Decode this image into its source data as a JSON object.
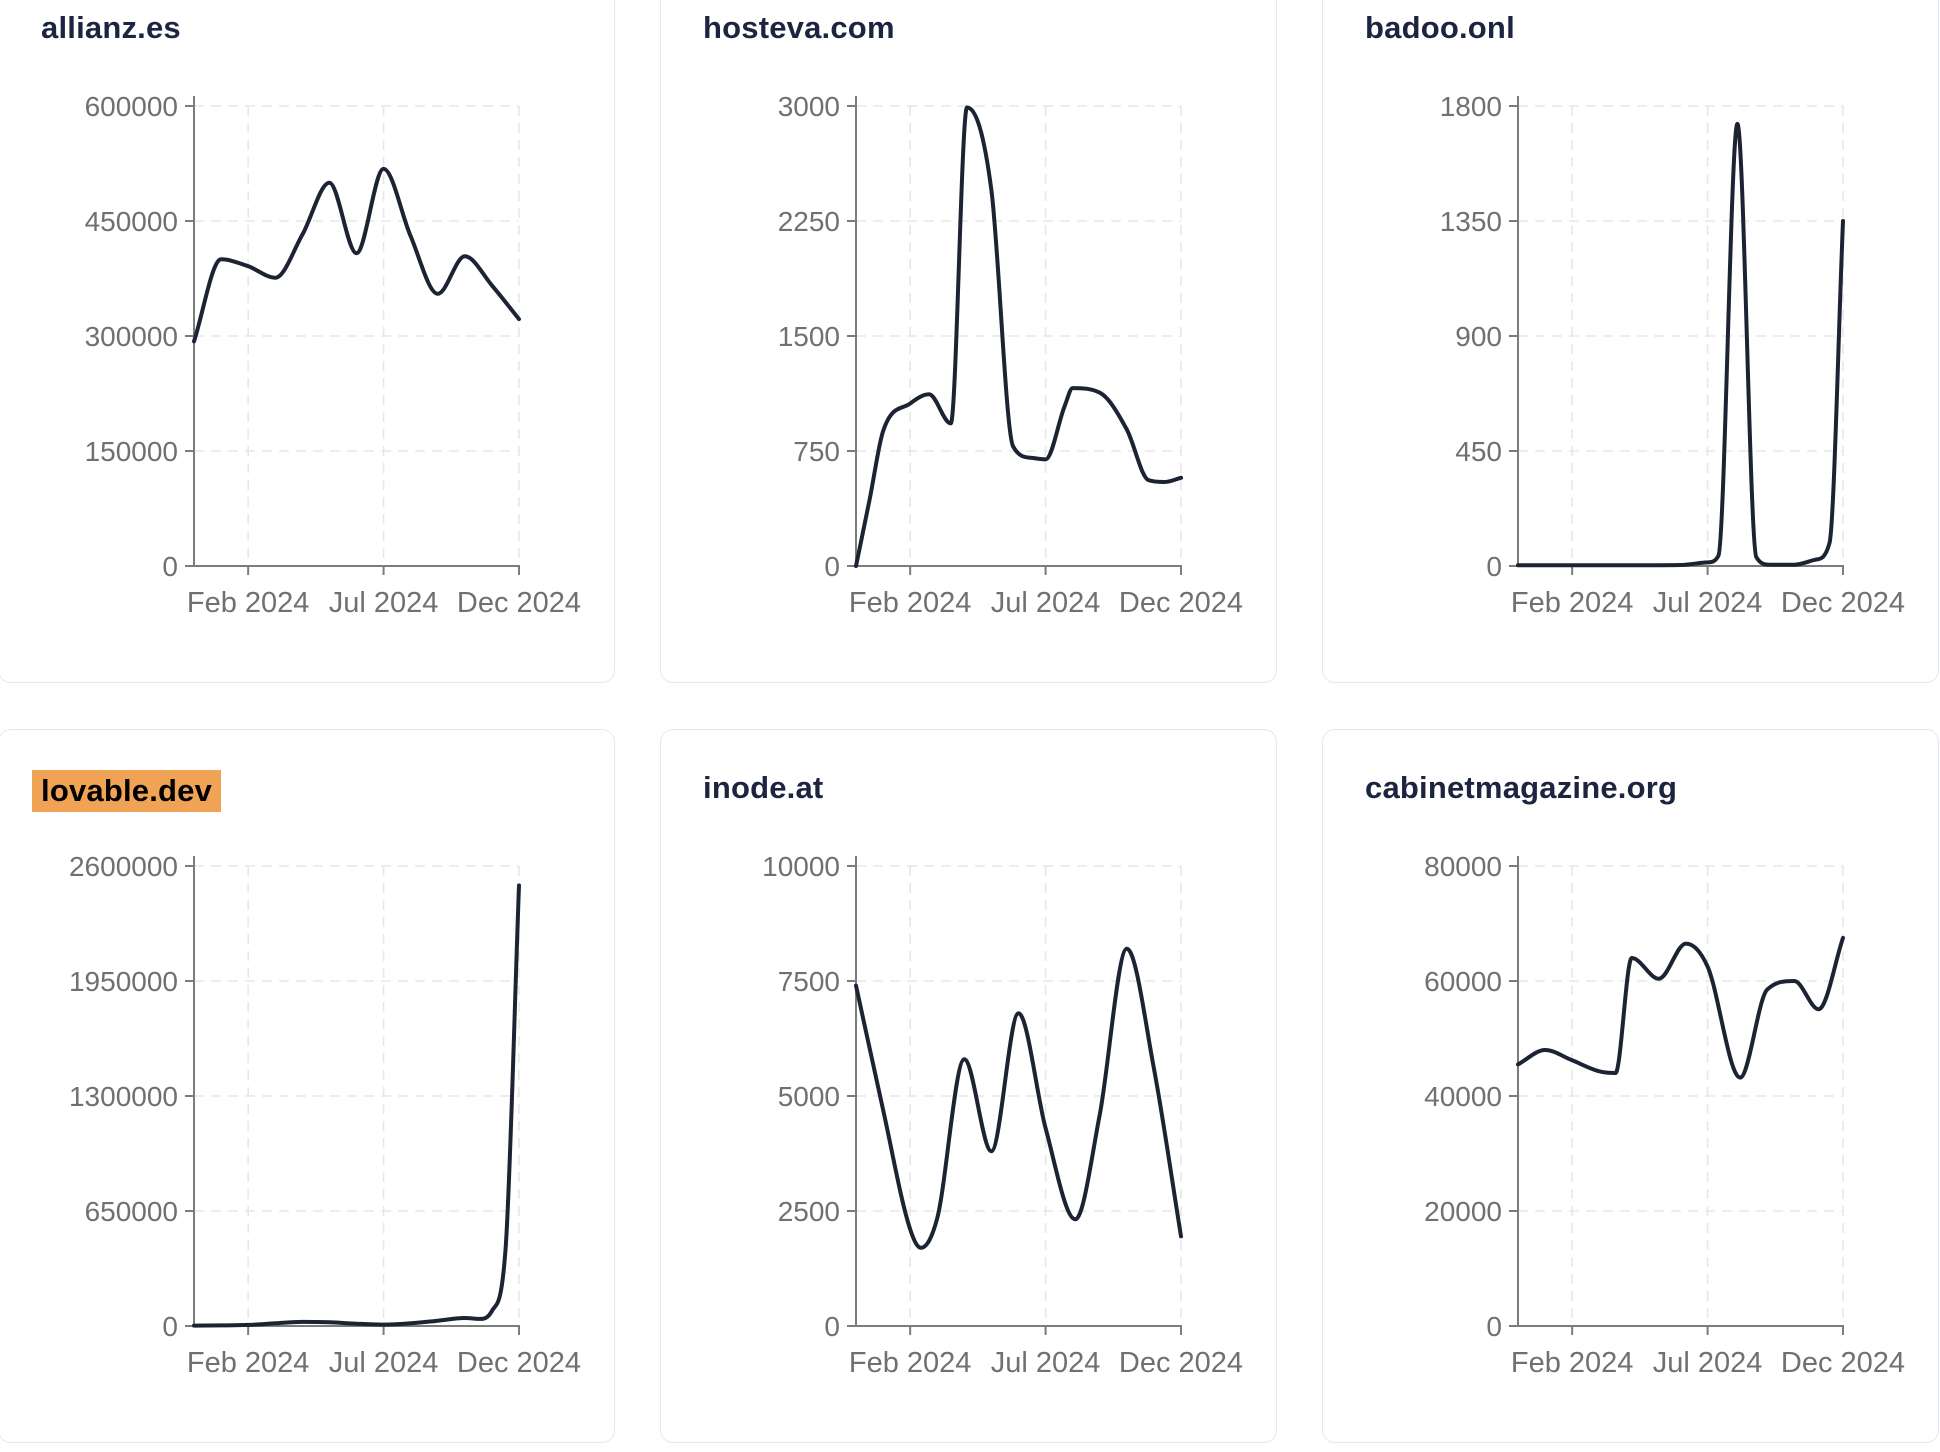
{
  "page": {
    "background": "#ffffff"
  },
  "colors": {
    "line": "#1c2333",
    "title": "#1c2540",
    "axis": "#7c7c7c",
    "tick_text": "#707070",
    "grid": "#e7e7e9",
    "card_bg": "#ffffff",
    "card_border": "#e4e8f0",
    "page_bg": "#ffffff",
    "highlight_bg": "#f0a355",
    "highlight_text": "#000000"
  },
  "chart_data": [
    {
      "type": "line",
      "title": "allianz.es",
      "highlighted": false,
      "x_start": "Dec 2023",
      "x_end": "Dec 2024",
      "x_tick_labels": [
        "Feb 2024",
        "Jul 2024",
        "Dec 2024"
      ],
      "x_tick_positions_months": [
        2,
        7,
        12
      ],
      "x_range_months": [
        0,
        12
      ],
      "ylim": [
        0,
        600000
      ],
      "y_ticks": [
        0,
        150000,
        300000,
        450000,
        600000
      ],
      "grid": "dashed",
      "legend": "none",
      "points": [
        [
          0,
          293000
        ],
        [
          1,
          400000
        ],
        [
          2,
          391000
        ],
        [
          3,
          376000
        ],
        [
          4,
          432000
        ],
        [
          5,
          500000
        ],
        [
          6,
          408000
        ],
        [
          7,
          518000
        ],
        [
          8,
          430000
        ],
        [
          9,
          355000
        ],
        [
          10,
          404000
        ],
        [
          11,
          366000
        ],
        [
          12,
          322000
        ]
      ]
    },
    {
      "type": "line",
      "title": "hosteva.com",
      "highlighted": false,
      "x_start": "Dec 2023",
      "x_end": "Dec 2024",
      "x_tick_labels": [
        "Feb 2024",
        "Jul 2024",
        "Dec 2024"
      ],
      "x_tick_positions_months": [
        2,
        7,
        12
      ],
      "x_range_months": [
        0,
        12
      ],
      "ylim": [
        0,
        3000
      ],
      "y_ticks": [
        0,
        750,
        1500,
        2250,
        3000
      ],
      "grid": "dashed",
      "legend": "none",
      "points": [
        [
          0,
          0
        ],
        [
          0.5,
          430
        ],
        [
          1,
          880
        ],
        [
          2,
          1060
        ],
        [
          2.7,
          1120
        ],
        [
          3.5,
          930
        ],
        [
          4.1,
          2990
        ],
        [
          5,
          2450
        ],
        [
          5.8,
          780
        ],
        [
          6.5,
          705
        ],
        [
          7,
          695
        ],
        [
          7.7,
          1040
        ],
        [
          8,
          1160
        ],
        [
          9,
          1130
        ],
        [
          10,
          890
        ],
        [
          10.8,
          560
        ],
        [
          11.4,
          548
        ],
        [
          12,
          575
        ]
      ]
    },
    {
      "type": "line",
      "title": "badoo.onl",
      "highlighted": false,
      "x_start": "Dec 2023",
      "x_end": "Dec 2024",
      "x_tick_labels": [
        "Feb 2024",
        "Jul 2024",
        "Dec 2024"
      ],
      "x_tick_positions_months": [
        2,
        7,
        12
      ],
      "x_range_months": [
        0,
        12
      ],
      "ylim": [
        0,
        1800
      ],
      "y_ticks": [
        0,
        450,
        900,
        1350,
        1800
      ],
      "grid": "dashed",
      "legend": "none",
      "points": [
        [
          0,
          3
        ],
        [
          1,
          3
        ],
        [
          2,
          3
        ],
        [
          3,
          3
        ],
        [
          4,
          3
        ],
        [
          5,
          3
        ],
        [
          6,
          4
        ],
        [
          7,
          14
        ],
        [
          7.4,
          40
        ],
        [
          8.1,
          1730
        ],
        [
          8.8,
          35
        ],
        [
          9.3,
          5
        ],
        [
          10.2,
          5
        ],
        [
          11,
          25
        ],
        [
          11.5,
          90
        ],
        [
          12,
          1350
        ]
      ]
    },
    {
      "type": "line",
      "title": "lovable.dev",
      "highlighted": true,
      "x_start": "Dec 2023",
      "x_end": "Dec 2024",
      "x_tick_labels": [
        "Feb 2024",
        "Jul 2024",
        "Dec 2024"
      ],
      "x_tick_positions_months": [
        2,
        7,
        12
      ],
      "x_range_months": [
        0,
        12
      ],
      "ylim": [
        0,
        2600000
      ],
      "y_ticks": [
        0,
        650000,
        1300000,
        1950000,
        2600000
      ],
      "grid": "dashed",
      "legend": "none",
      "points": [
        [
          0,
          2000
        ],
        [
          1,
          3500
        ],
        [
          2,
          6000
        ],
        [
          3,
          15000
        ],
        [
          4,
          23000
        ],
        [
          5,
          21000
        ],
        [
          6,
          13000
        ],
        [
          7,
          8000
        ],
        [
          8,
          15000
        ],
        [
          9,
          30000
        ],
        [
          10,
          45000
        ],
        [
          10.6,
          40000
        ],
        [
          11,
          85000
        ],
        [
          11.5,
          430000
        ],
        [
          12,
          2490000
        ]
      ]
    },
    {
      "type": "line",
      "title": "inode.at",
      "highlighted": false,
      "x_start": "Dec 2023",
      "x_end": "Dec 2024",
      "x_tick_labels": [
        "Feb 2024",
        "Jul 2024",
        "Dec 2024"
      ],
      "x_tick_positions_months": [
        2,
        7,
        12
      ],
      "x_range_months": [
        0,
        12
      ],
      "ylim": [
        0,
        10000
      ],
      "y_ticks": [
        0,
        2500,
        5000,
        7500,
        10000
      ],
      "grid": "dashed",
      "legend": "none",
      "points": [
        [
          0,
          7400
        ],
        [
          1,
          4700
        ],
        [
          2,
          2100
        ],
        [
          2.4,
          1700
        ],
        [
          3,
          2350
        ],
        [
          4,
          5800
        ],
        [
          5,
          3800
        ],
        [
          6,
          6800
        ],
        [
          7,
          4300
        ],
        [
          8.1,
          2320
        ],
        [
          9,
          4600
        ],
        [
          10,
          8200
        ],
        [
          11,
          5600
        ],
        [
          12,
          1950
        ]
      ]
    },
    {
      "type": "line",
      "title": "cabinetmagazine.org",
      "highlighted": false,
      "x_start": "Dec 2023",
      "x_end": "Dec 2024",
      "x_tick_labels": [
        "Feb 2024",
        "Jul 2024",
        "Dec 2024"
      ],
      "x_tick_positions_months": [
        2,
        7,
        12
      ],
      "x_range_months": [
        0,
        12
      ],
      "ylim": [
        0,
        80000
      ],
      "y_ticks": [
        0,
        20000,
        40000,
        60000,
        80000
      ],
      "grid": "dashed",
      "legend": "none",
      "points": [
        [
          0,
          45500
        ],
        [
          1,
          48000
        ],
        [
          2,
          46200
        ],
        [
          3,
          44300
        ],
        [
          3.6,
          44000
        ],
        [
          4.2,
          64000
        ],
        [
          5.2,
          60400
        ],
        [
          6.2,
          66500
        ],
        [
          7,
          62500
        ],
        [
          8.2,
          43200
        ],
        [
          9.2,
          58500
        ],
        [
          10.2,
          60000
        ],
        [
          11.1,
          55100
        ],
        [
          12,
          67500
        ]
      ]
    }
  ]
}
